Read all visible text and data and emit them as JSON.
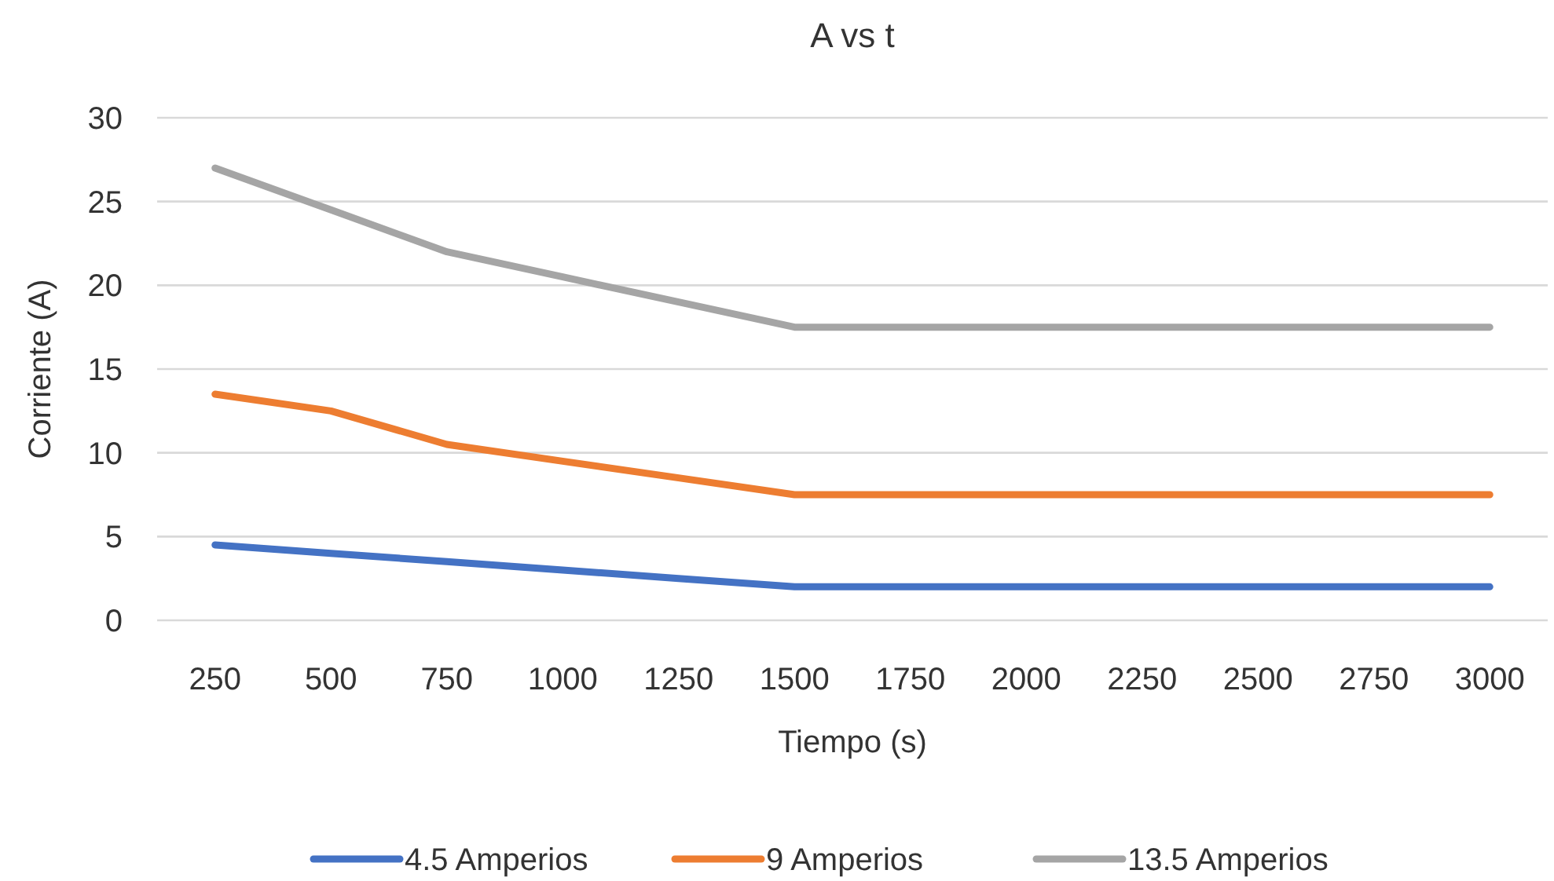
{
  "chart_data": {
    "type": "line",
    "title": "A vs t",
    "xlabel": "Tiempo (s)",
    "ylabel": "Corriente (A)",
    "categories": [
      "250",
      "500",
      "750",
      "1000",
      "1250",
      "1500",
      "1750",
      "2000",
      "2250",
      "2500",
      "2750",
      "3000"
    ],
    "series": [
      {
        "name": "4.5 Amperios",
        "color": "#4472c4",
        "values": [
          4.5,
          4,
          3.5,
          3,
          2.5,
          2,
          2,
          2,
          2,
          2,
          2,
          2
        ]
      },
      {
        "name": "9 Amperios",
        "color": "#ed7d31",
        "values": [
          13.5,
          12.5,
          10.5,
          9.5,
          8.5,
          7.5,
          7.5,
          7.5,
          7.5,
          7.5,
          7.5,
          7.5
        ]
      },
      {
        "name": "13.5 Amperios",
        "color": "#a5a5a5",
        "values": [
          27,
          24.5,
          22,
          20.5,
          19,
          17.5,
          17.5,
          17.5,
          17.5,
          17.5,
          17.5,
          17.5
        ]
      }
    ],
    "ylim": [
      0,
      30
    ],
    "yticks": [
      0,
      5,
      10,
      15,
      20,
      25,
      30
    ],
    "grid": "y",
    "legend": "bottom",
    "marker": "none",
    "line_style": "solid"
  }
}
